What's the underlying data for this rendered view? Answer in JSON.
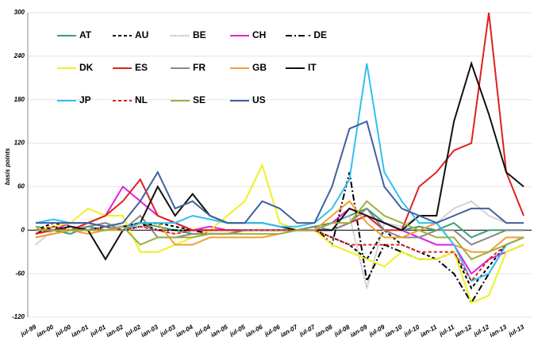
{
  "chart_data": {
    "type": "line",
    "y_label": "basis points",
    "categories": [
      "jul-99",
      "jan-00",
      "jul-00",
      "jan-01",
      "jul-01",
      "jan-02",
      "jul-02",
      "jan-03",
      "jul-03",
      "jan-04",
      "jul-04",
      "jan-05",
      "jul-05",
      "jan-06",
      "jul-06",
      "jan-07",
      "jul-07",
      "jan-08",
      "jul-08",
      "jan-09",
      "jul-09",
      "jan-10",
      "jul-10",
      "jan-11",
      "jul-11",
      "jan-12",
      "jul-12",
      "jan-13",
      "jul-13"
    ],
    "ylim": [
      -120,
      300
    ],
    "yticks": [
      -120,
      -60,
      0,
      60,
      120,
      180,
      240,
      300
    ],
    "grid": true,
    "series": [
      {
        "name": "AT",
        "color": "#3aa070",
        "dash": "none",
        "values": [
          5,
          0,
          -5,
          5,
          0,
          5,
          10,
          5,
          0,
          -5,
          -5,
          -5,
          0,
          0,
          0,
          0,
          5,
          10,
          20,
          30,
          10,
          0,
          5,
          0,
          10,
          -10,
          0,
          0,
          0
        ]
      },
      {
        "name": "AU",
        "color": "#000000",
        "dash": "4 3",
        "values": [
          0,
          10,
          5,
          0,
          5,
          0,
          5,
          10,
          5,
          0,
          0,
          0,
          0,
          0,
          0,
          0,
          0,
          -10,
          -20,
          -40,
          0,
          -20,
          -30,
          -40,
          -30,
          -80,
          -50,
          -20,
          -10
        ]
      },
      {
        "name": "BE",
        "color": "#aaaaaa",
        "dash": "1 1",
        "values": [
          -20,
          0,
          5,
          5,
          10,
          5,
          5,
          0,
          -5,
          0,
          0,
          0,
          0,
          0,
          0,
          0,
          0,
          10,
          20,
          -80,
          10,
          5,
          20,
          10,
          30,
          40,
          20,
          10,
          10
        ]
      },
      {
        "name": "CH",
        "color": "#e020e0",
        "dash": "none",
        "values": [
          0,
          0,
          10,
          10,
          20,
          60,
          40,
          20,
          10,
          0,
          5,
          0,
          0,
          0,
          0,
          0,
          0,
          10,
          30,
          20,
          10,
          0,
          -10,
          -20,
          -20,
          -60,
          -40,
          -30,
          -20
        ]
      },
      {
        "name": "- DE",
        "color": "#000000",
        "dash": "8 3 2 3",
        "values": [
          -5,
          5,
          0,
          0,
          0,
          5,
          10,
          0,
          0,
          0,
          -5,
          -5,
          0,
          0,
          0,
          0,
          5,
          -20,
          80,
          -70,
          -20,
          -30,
          -40,
          -40,
          -60,
          -100,
          -60,
          -20,
          -10
        ]
      },
      {
        "name": "DK",
        "color": "#f0f020",
        "dash": "none",
        "values": [
          0,
          5,
          10,
          30,
          20,
          20,
          -30,
          -30,
          -20,
          -10,
          0,
          20,
          40,
          90,
          10,
          0,
          0,
          -20,
          -30,
          -40,
          -50,
          -30,
          -40,
          -40,
          -30,
          -100,
          -90,
          -30,
          -20
        ]
      },
      {
        "name": "ES",
        "color": "#e02020",
        "dash": "none",
        "values": [
          -5,
          0,
          0,
          10,
          20,
          40,
          70,
          20,
          10,
          0,
          0,
          0,
          0,
          0,
          0,
          0,
          0,
          0,
          10,
          20,
          0,
          0,
          60,
          80,
          110,
          120,
          300,
          80,
          20
        ]
      },
      {
        "name": "FR",
        "color": "#888888",
        "dash": "none",
        "values": [
          -10,
          -5,
          0,
          5,
          10,
          0,
          20,
          -10,
          -10,
          -5,
          -5,
          -5,
          0,
          0,
          0,
          0,
          5,
          0,
          10,
          30,
          0,
          -10,
          -10,
          0,
          0,
          -20,
          -10,
          0,
          0
        ]
      },
      {
        "name": "GB",
        "color": "#f0a030",
        "dash": "none",
        "values": [
          -10,
          -5,
          0,
          -5,
          0,
          0,
          10,
          10,
          -20,
          -20,
          -10,
          -10,
          -10,
          -10,
          -5,
          0,
          0,
          20,
          40,
          10,
          -10,
          -10,
          0,
          10,
          -20,
          -30,
          -30,
          -10,
          -10
        ]
      },
      {
        "name": "IT",
        "color": "#111111",
        "dash": "none",
        "values": [
          0,
          0,
          5,
          0,
          -40,
          0,
          10,
          60,
          20,
          50,
          20,
          10,
          10,
          10,
          5,
          0,
          0,
          0,
          30,
          20,
          10,
          0,
          20,
          20,
          150,
          230,
          160,
          80,
          60
        ]
      },
      {
        "name": "JP",
        "color": "#30c0f0",
        "dash": "none",
        "values": [
          10,
          15,
          10,
          10,
          5,
          0,
          10,
          10,
          10,
          20,
          15,
          10,
          10,
          10,
          5,
          5,
          10,
          30,
          70,
          230,
          80,
          40,
          10,
          10,
          -20,
          -70,
          -60,
          -20,
          -10
        ]
      },
      {
        "name": "NL",
        "color": "#e02020",
        "dash": "4 3",
        "values": [
          0,
          5,
          0,
          0,
          5,
          0,
          5,
          0,
          -5,
          0,
          0,
          0,
          0,
          0,
          0,
          0,
          0,
          -10,
          -20,
          -20,
          -20,
          -20,
          -30,
          -30,
          -30,
          -70,
          -40,
          -20,
          -10
        ]
      },
      {
        "name": "SE",
        "color": "#9ab040",
        "dash": "none",
        "values": [
          0,
          0,
          0,
          0,
          0,
          5,
          -20,
          -10,
          -10,
          -10,
          -5,
          -5,
          -5,
          -5,
          -5,
          0,
          0,
          10,
          10,
          40,
          20,
          10,
          0,
          -10,
          -10,
          -40,
          -30,
          -20,
          -10
        ]
      },
      {
        "name": "US",
        "color": "#4060a0",
        "dash": "none",
        "values": [
          10,
          10,
          10,
          10,
          5,
          10,
          40,
          80,
          30,
          40,
          20,
          10,
          10,
          40,
          30,
          10,
          10,
          60,
          140,
          150,
          60,
          30,
          20,
          10,
          20,
          30,
          30,
          10,
          10
        ]
      }
    ]
  }
}
